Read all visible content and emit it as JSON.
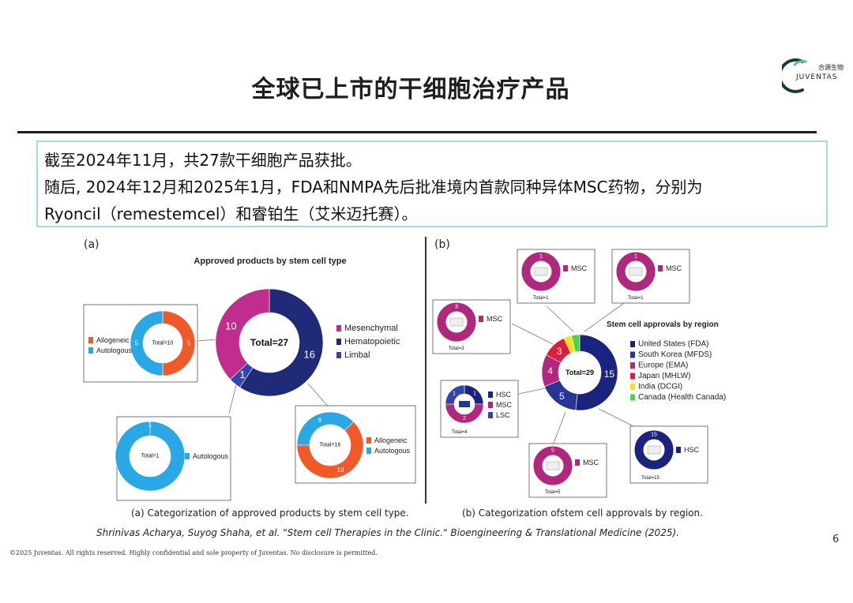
{
  "title": "全球已上市的干细胞治疗产品",
  "logo": {
    "zh": "合源生物",
    "en": "JUVENTAS"
  },
  "summary": [
    "截至2024年11月，共27款干细胞产品获批。",
    "随后, 2024年12月和2025年1月，FDA和NMPA先后批准境内首款同种异体MSC药物，分别为",
    "Ryoncil（remestemcel）和睿铂生（艾米迈托赛）。"
  ],
  "colors": {
    "mesenchymal": "#c12d8c",
    "hematopoietic": "#1f2a78",
    "limbal": "#3346a8",
    "allogeneic": "#f05a28",
    "autologous": "#2aa8e6",
    "us": "#1a237e",
    "korea": "#283593",
    "europe": "#b0287d",
    "japan": "#e31b3b",
    "india": "#f6e11a",
    "canada": "#4cd44c"
  },
  "panel_a": {
    "label": "(a)",
    "chart_title": "Approved products by stem cell type",
    "main_total": "Total=27",
    "caption": "(a) Categorization of approved products by stem cell type.",
    "legend": [
      "Mesenchymal",
      "Hematopoietic",
      "Limbal"
    ],
    "msc_box": {
      "total": "Total=10",
      "legend": [
        "Allogeneic",
        "Autologous"
      ],
      "labels": [
        "5",
        "5"
      ]
    },
    "limbal_box": {
      "total": "Total=1",
      "legend": [
        "Autologous"
      ],
      "labels": [
        "1"
      ]
    },
    "hsc_box": {
      "total": "Total=16",
      "legend": [
        "Allogeneic",
        "Autologous"
      ],
      "labels": [
        "10",
        "6"
      ]
    }
  },
  "panel_b": {
    "label": "(b)",
    "chart_title": "Stem cell approvals by region",
    "main_total": "Total=29",
    "caption": "(b) Categorization ofstem cell approvals by region.",
    "legend": [
      "United States (FDA)",
      "South Korea (MFDS)",
      "Europe (EMA)",
      "Japan (MHLW)",
      "India (DCGI)",
      "Canada (Health Canada)"
    ],
    "boxes": {
      "india": {
        "count": "1",
        "legend": [
          "MSC"
        ],
        "total": "Total=1"
      },
      "canada": {
        "count": "1",
        "legend": [
          "MSC"
        ],
        "total": "Total=1"
      },
      "japan": {
        "count": "3",
        "legend": [
          "MSC"
        ],
        "total": "Total=3"
      },
      "europe": {
        "counts": [
          "1",
          "2",
          "1"
        ],
        "legend": [
          "HSC",
          "MSC",
          "LSC"
        ],
        "total": "Total=4"
      },
      "korea": {
        "count": "5",
        "legend": [
          "MSC"
        ],
        "total": "Total=5"
      },
      "us": {
        "count": "15",
        "legend": [
          "HSC"
        ],
        "total": "Total=15"
      }
    }
  },
  "chart_data": [
    {
      "type": "pie",
      "title": "Approved products by stem cell type",
      "categories": [
        "Mesenchymal",
        "Hematopoietic",
        "Limbal"
      ],
      "values": [
        10,
        16,
        1
      ],
      "total": 27
    },
    {
      "type": "pie",
      "categories": [
        "Allogeneic",
        "Autologous"
      ],
      "values": [
        5,
        5
      ],
      "total": 10
    },
    {
      "type": "pie",
      "categories": [
        "Autologous"
      ],
      "values": [
        1
      ],
      "total": 1
    },
    {
      "type": "pie",
      "categories": [
        "Allogeneic",
        "Autologous"
      ],
      "values": [
        10,
        6
      ],
      "total": 16
    },
    {
      "type": "pie",
      "title": "Stem cell approvals by region",
      "categories": [
        "United States (FDA)",
        "South Korea (MFDS)",
        "Europe (EMA)",
        "Japan (MHLW)",
        "India (DCGI)",
        "Canada (Health Canada)"
      ],
      "values": [
        15,
        5,
        4,
        3,
        1,
        1
      ],
      "total": 29
    },
    {
      "type": "pie",
      "categories": [
        "HSC",
        "MSC",
        "LSC"
      ],
      "values": [
        1,
        2,
        1
      ],
      "total": 4
    }
  ],
  "citation": "Shrinivas Acharya, Suyog Shaha, et al.  \"Stem cell Therapies in the Clinic.\" Bioengineering & Translational Medicine (2025).",
  "page_number": "6",
  "copyright": "©2025 Juventas. All rights reserved. Highly confidential and sole property of Juventas. No disclosure is permitted."
}
